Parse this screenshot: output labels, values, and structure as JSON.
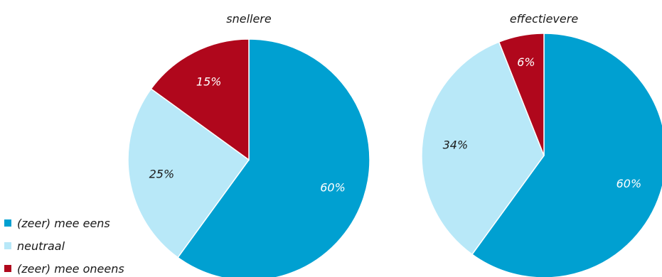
{
  "chart_data": [
    {
      "type": "pie",
      "title": "snellere",
      "slices": [
        {
          "name": "(zeer) mee eens",
          "value": 60,
          "label": "60%"
        },
        {
          "name": "neutraal",
          "value": 25,
          "label": "25%"
        },
        {
          "name": "(zeer) mee oneens",
          "value": 15,
          "label": "15%"
        }
      ]
    },
    {
      "type": "pie",
      "title": "effectievere",
      "slices": [
        {
          "name": "(zeer) mee eens",
          "value": 60,
          "label": "60%"
        },
        {
          "name": "neutraal",
          "value": 34,
          "label": "34%"
        },
        {
          "name": "(zeer) mee oneens",
          "value": 6,
          "label": "6%"
        }
      ]
    }
  ],
  "legend": {
    "placement": "bottom-left",
    "items": [
      {
        "label": "(zeer) mee eens",
        "color": "#00a0d1"
      },
      {
        "label": "neutraal",
        "color": "#b8e8f8"
      },
      {
        "label": "(zeer) mee oneens",
        "color": "#b0071c"
      }
    ]
  },
  "colors": {
    "label_on_dark": "#ffffff",
    "label_on_light": "#1a1a1a"
  }
}
